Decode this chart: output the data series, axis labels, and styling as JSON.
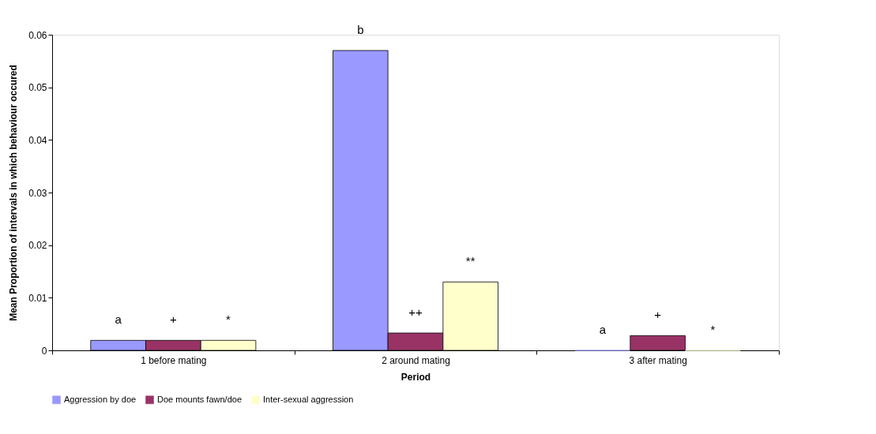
{
  "chart_data": {
    "type": "bar",
    "xlabel": "Period",
    "ylabel": "Mean Proportion of intervals in which behaviour occured",
    "categories": [
      "1 before mating",
      "2 around mating",
      "3 after mating"
    ],
    "series": [
      {
        "name": "Aggression by doe",
        "color": "#9999ff",
        "values": [
          0.0019,
          0.057,
          0
        ]
      },
      {
        "name": "Doe mounts fawn/doe",
        "color": "#993366",
        "values": [
          0.0019,
          0.0033,
          0.0028
        ]
      },
      {
        "name": "Inter-sexual aggression",
        "color": "#ffffcc",
        "values": [
          0.0019,
          0.013,
          0
        ]
      }
    ],
    "ylim": [
      0,
      0.06
    ],
    "yticks": [
      0,
      0.01,
      0.02,
      0.03,
      0.04,
      0.05,
      0.06
    ],
    "grid": false,
    "legend": "bottom",
    "annotations": [
      "a",
      "+",
      "*",
      "b",
      "++",
      "**",
      "a",
      "+",
      "*"
    ]
  }
}
